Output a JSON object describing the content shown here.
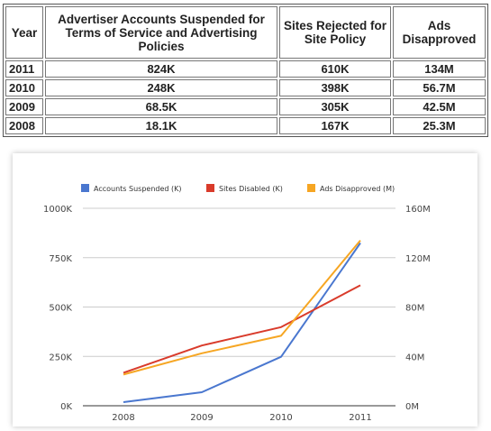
{
  "table": {
    "headers": [
      "Year",
      "Advertiser Accounts Suspended for Terms of Service and Advertising Policies",
      "Sites Rejected for Site Policy",
      "Ads Disapproved"
    ],
    "rows": [
      [
        "2011",
        "824K",
        "610K",
        "134M"
      ],
      [
        "2010",
        "248K",
        "398K",
        "56.7M"
      ],
      [
        "2009",
        "68.5K",
        "305K",
        "42.5M"
      ],
      [
        "2008",
        "18.1K",
        "167K",
        "25.3M"
      ]
    ]
  },
  "chart_data": {
    "type": "line",
    "categories": [
      "2008",
      "2009",
      "2010",
      "2011"
    ],
    "series": [
      {
        "name": "Accounts Suspended (K)",
        "axis": "left",
        "color": "#4a77cf",
        "values": [
          18.1,
          68.5,
          248,
          824
        ]
      },
      {
        "name": "Sites Disabled (K)",
        "axis": "left",
        "color": "#d93b2b",
        "values": [
          167,
          305,
          398,
          610
        ]
      },
      {
        "name": "Ads Disapproved (M)",
        "axis": "right",
        "color": "#f6a623",
        "values": [
          25.3,
          42.5,
          56.7,
          134
        ]
      }
    ],
    "y_left": {
      "range": [
        0,
        1000
      ],
      "ticks": [
        "0K",
        "250K",
        "500K",
        "750K",
        "1000K"
      ]
    },
    "y_right": {
      "range": [
        0,
        160
      ],
      "ticks": [
        "0M",
        "40M",
        "80M",
        "120M",
        "160M"
      ]
    },
    "grid": true,
    "legend_position": "top"
  }
}
